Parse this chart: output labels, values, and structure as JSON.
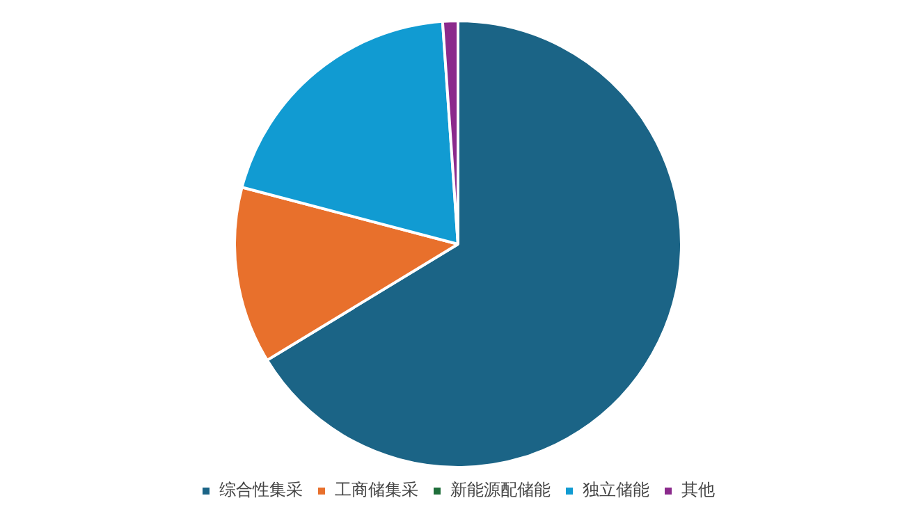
{
  "chart_data": {
    "type": "pie",
    "categories": [
      "综合性集采",
      "工商储集采",
      "新能源配储能",
      "独立储能",
      "其他"
    ],
    "values": [
      66.3,
      12.8,
      0,
      19.8,
      1.1
    ],
    "colors": [
      "#1b6486",
      "#e8702c",
      "#1f6e3a",
      "#119bd2",
      "#8b2a8c"
    ],
    "legend": "bottom"
  }
}
